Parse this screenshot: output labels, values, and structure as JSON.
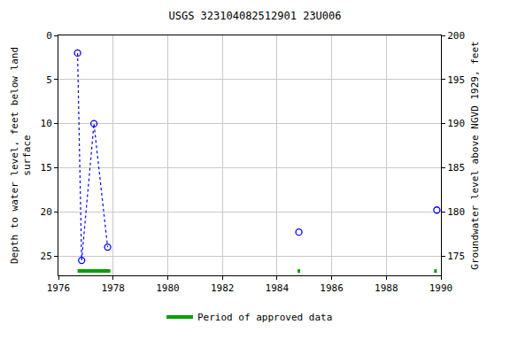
{
  "chart_data": {
    "type": "scatter",
    "title": "USGS 323104082512901 23U006",
    "y_label": "Depth to water level, feet below land surface",
    "y2_label": "Groundwater level above NGVD 1929, feet",
    "xlim": [
      1976,
      1990
    ],
    "xticks": [
      1976,
      1978,
      1980,
      1982,
      1984,
      1986,
      1988,
      1990
    ],
    "ylim": [
      27.2,
      0
    ],
    "yticks": [
      0,
      5,
      10,
      15,
      20,
      25
    ],
    "y2lim": [
      172.8,
      200
    ],
    "y2ticks": [
      175,
      180,
      185,
      190,
      195,
      200
    ],
    "grid": true,
    "series": [
      {
        "x": [
          1976.7,
          1976.85,
          1977.3,
          1977.8
        ],
        "values": [
          2,
          25.5,
          10,
          24
        ],
        "color": "#0000ff",
        "marker": "circle-open",
        "line_style": "dot"
      },
      {
        "x": [
          1984.8,
          1989.85
        ],
        "values": [
          22.3,
          19.8
        ],
        "color": "#0000ff",
        "marker": "circle-open",
        "line_style": "none"
      }
    ],
    "approved_periods": {
      "name": "Period of approved data",
      "color": "#00a000",
      "ranges": [
        [
          1976.7,
          1977.9
        ],
        [
          1984.75,
          1984.85
        ],
        [
          1989.75,
          1989.85
        ]
      ]
    }
  }
}
